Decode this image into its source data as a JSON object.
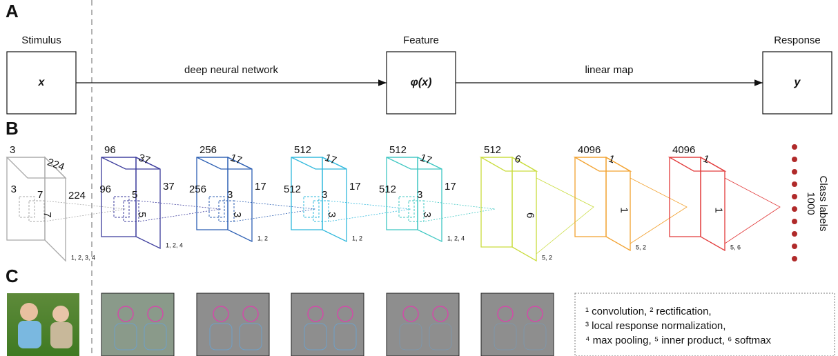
{
  "panels": {
    "a": "A",
    "b": "B",
    "c": "C"
  },
  "pipeline": {
    "stages": [
      {
        "title": "Stimulus",
        "symbol": "x"
      },
      {
        "title": "Feature",
        "symbol": "φ(x)"
      },
      {
        "title": "Response",
        "symbol": "y"
      }
    ],
    "arrows": [
      "deep neural network",
      "linear map"
    ]
  },
  "layers": [
    {
      "depth": 3,
      "width": 224,
      "height": 224,
      "kernel_depth": 3,
      "kernel_w": 7,
      "kernel_h": 7,
      "ops": "1, 2, 3, 4",
      "color": "#a8a8a8"
    },
    {
      "depth": 96,
      "width": 37,
      "height": 37,
      "kernel_depth": 96,
      "kernel_w": 5,
      "kernel_h": 5,
      "ops": "1, 2, 4",
      "color": "#3b3b9c"
    },
    {
      "depth": 256,
      "width": 17,
      "height": 17,
      "kernel_depth": 256,
      "kernel_w": 3,
      "kernel_h": 3,
      "ops": "1, 2",
      "color": "#2c5fb3"
    },
    {
      "depth": 512,
      "width": 17,
      "height": 17,
      "kernel_depth": 512,
      "kernel_w": 3,
      "kernel_h": 3,
      "ops": "1, 2",
      "color": "#2fb8dc"
    },
    {
      "depth": 512,
      "width": 17,
      "height": 17,
      "kernel_depth": 512,
      "kernel_w": 3,
      "kernel_h": 3,
      "ops": "1, 2, 4",
      "color": "#3ec7c2"
    },
    {
      "depth": 512,
      "width": 6,
      "height": 6,
      "ops": "5, 2",
      "color": "#c9dc3c"
    },
    {
      "depth": 4096,
      "width": 1,
      "height": 1,
      "ops": "5, 2",
      "color": "#f2a12e"
    },
    {
      "depth": 4096,
      "width": 1,
      "height": 1,
      "ops": "5, 6",
      "color": "#e23a3a"
    }
  ],
  "output": {
    "label": "Class labels",
    "count": 1000
  },
  "legend": [
    "¹ convolution, ² rectification,",
    "³ local response normalization,",
    "⁴ max pooling, ⁵ inner product, ⁶ softmax"
  ]
}
